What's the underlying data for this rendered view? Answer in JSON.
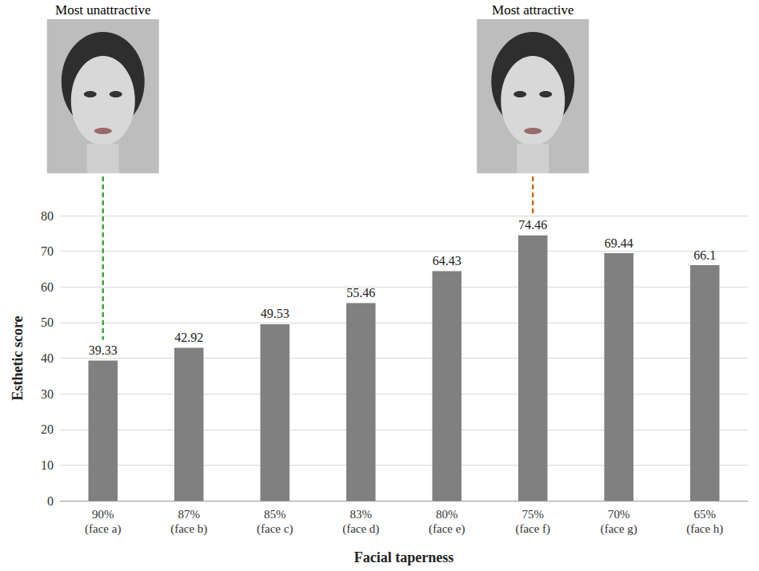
{
  "chart_data": {
    "type": "bar",
    "categories": [
      "90%\n(face a)",
      "87%\n(face b)",
      "85%\n(face c)",
      "83%\n(face d)",
      "80%\n(face e)",
      "75%\n(face f)",
      "70%\n(face g)",
      "65%\n(face h)"
    ],
    "values": [
      39.33,
      42.92,
      49.53,
      55.46,
      64.43,
      74.46,
      69.44,
      66.1
    ],
    "color": "#808080",
    "x_label": "Facial taperness",
    "y_label": "Esthetic score",
    "ylim": [
      0,
      80
    ],
    "yticks": [
      0,
      10,
      20,
      30,
      40,
      50,
      60,
      70,
      80
    ],
    "grid": true,
    "data_labels": true,
    "annotations": [
      {
        "text": "Most unattractive",
        "category": "90%\n(face a)",
        "color": "#3aa83a"
      },
      {
        "text": "Most attractive",
        "category": "75%\n(face f)",
        "color": "#d2691e"
      }
    ]
  }
}
